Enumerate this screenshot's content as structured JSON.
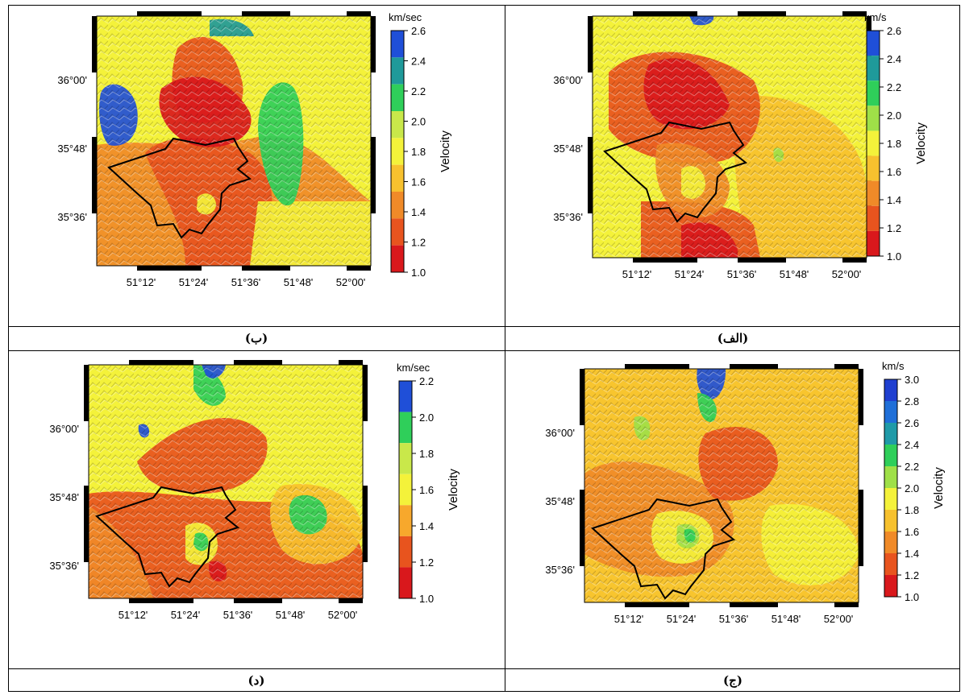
{
  "panels": [
    {
      "id": "b",
      "caption": "(ب)",
      "unit": "km/sec",
      "velocity_label": "Velocity",
      "lat_labels": [
        "36°00'",
        "35°48'",
        "35°36'"
      ],
      "lon_labels": [
        "51°12'",
        "51°24'",
        "51°36'",
        "51°48'",
        "52°00'"
      ],
      "colorbar_ticks": [
        "2.6",
        "2.4",
        "2.2",
        "2.0",
        "1.8",
        "1.6",
        "1.4",
        "1.2",
        "1.0"
      ],
      "colorbar_colors": [
        "#1f4fd8",
        "#1f9a9a",
        "#2fcf5a",
        "#c9e84a",
        "#f4f23a",
        "#f7c12e",
        "#f08a28",
        "#e8541e",
        "#d9181c"
      ]
    },
    {
      "id": "alef",
      "caption": "(الف)",
      "unit": "km/s",
      "velocity_label": "Velocity",
      "lat_labels": [
        "36°00'",
        "35°48'",
        "35°36'"
      ],
      "lon_labels": [
        "51°12'",
        "51°24'",
        "51°36'",
        "51°48'",
        "52°00'"
      ],
      "colorbar_ticks": [
        "2.6",
        "2.4",
        "2.2",
        "2.0",
        "1.8",
        "1.6",
        "1.4",
        "1.2",
        "1.0"
      ],
      "colorbar_colors": [
        "#1f4fd8",
        "#1f9a9a",
        "#2fcf5a",
        "#9fe048",
        "#f4f23a",
        "#f7c12e",
        "#f08a28",
        "#e8541e",
        "#d9181c"
      ]
    },
    {
      "id": "dal",
      "caption": "(د)",
      "unit": "km/sec",
      "velocity_label": "Velocity",
      "lat_labels": [
        "36°00'",
        "35°48'",
        "35°36'"
      ],
      "lon_labels": [
        "51°12'",
        "51°24'",
        "51°36'",
        "51°48'",
        "52°00'"
      ],
      "colorbar_ticks": [
        "2.2",
        "2.0",
        "1.8",
        "1.6",
        "1.4",
        "1.2",
        "1.0"
      ],
      "colorbar_colors": [
        "#1f4fd8",
        "#2fcf5a",
        "#c9e84a",
        "#f4f23a",
        "#f7a82c",
        "#e8541e",
        "#d9181c"
      ]
    },
    {
      "id": "jim",
      "caption": "(ج)",
      "unit": "km/s",
      "velocity_label": "Velocity",
      "lat_labels": [
        "36°00'",
        "35°48'",
        "35°36'"
      ],
      "lon_labels": [
        "51°12'",
        "51°24'",
        "51°36'",
        "51°48'",
        "52°00'"
      ],
      "colorbar_ticks": [
        "3.0",
        "2.8",
        "2.6",
        "2.4",
        "2.2",
        "2.0",
        "1.8",
        "1.6",
        "1.4",
        "1.2",
        "1.0"
      ],
      "colorbar_colors": [
        "#1f3fd0",
        "#1f6fd8",
        "#1f9aa8",
        "#2fcf5a",
        "#9fe048",
        "#f4f23a",
        "#f7c12e",
        "#f08a28",
        "#e8541e",
        "#d9181c"
      ]
    }
  ]
}
